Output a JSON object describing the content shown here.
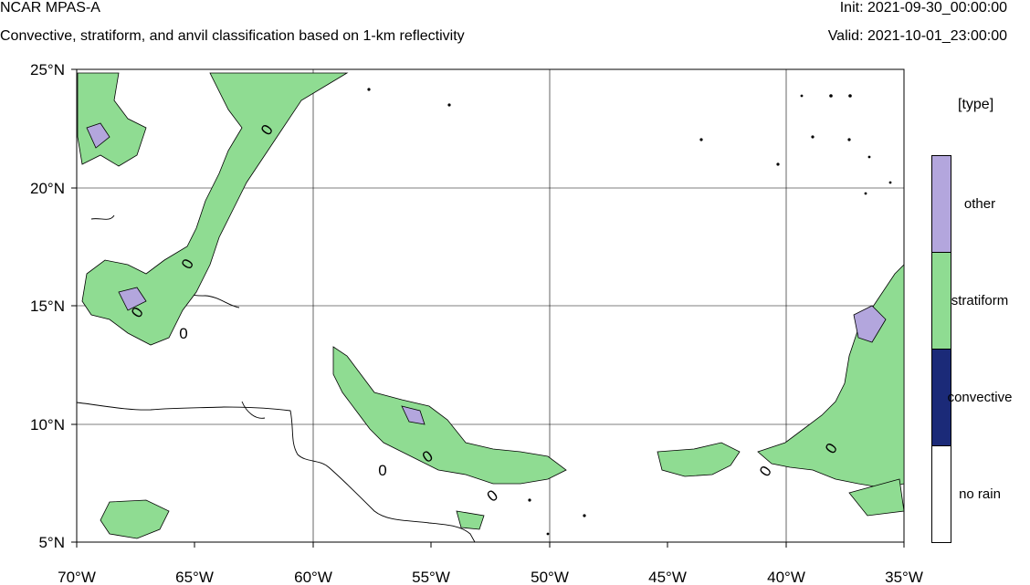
{
  "header": {
    "title": "NCAR MPAS-A",
    "subtitle": "Convective, stratiform, and anvil classification based on 1-km reflectivity",
    "init": "Init: 2021-09-30_00:00:00",
    "valid": "Valid: 2021-10-01_23:00:00"
  },
  "map": {
    "lon_ticks": [
      "70°W",
      "65°W",
      "60°W",
      "55°W",
      "50°W",
      "45°W",
      "40°W",
      "35°W"
    ],
    "lat_ticks": [
      "25°N",
      "20°N",
      "15°N",
      "10°N",
      "5°N"
    ],
    "contour_labels": [
      "0",
      "0",
      "0",
      "0",
      "0",
      "0",
      "0",
      "0",
      "0",
      "0"
    ]
  },
  "legend": {
    "title": "[type]",
    "items": [
      {
        "label": "other",
        "color": "#b3a6dd"
      },
      {
        "label": "stratiform",
        "color": "#8fdc92"
      },
      {
        "label": "convective",
        "color": "#1b2a78"
      },
      {
        "label": "no rain",
        "color": "#ffffff"
      }
    ]
  },
  "colors": {
    "land_outline": "#000000",
    "grid": "#000000"
  }
}
